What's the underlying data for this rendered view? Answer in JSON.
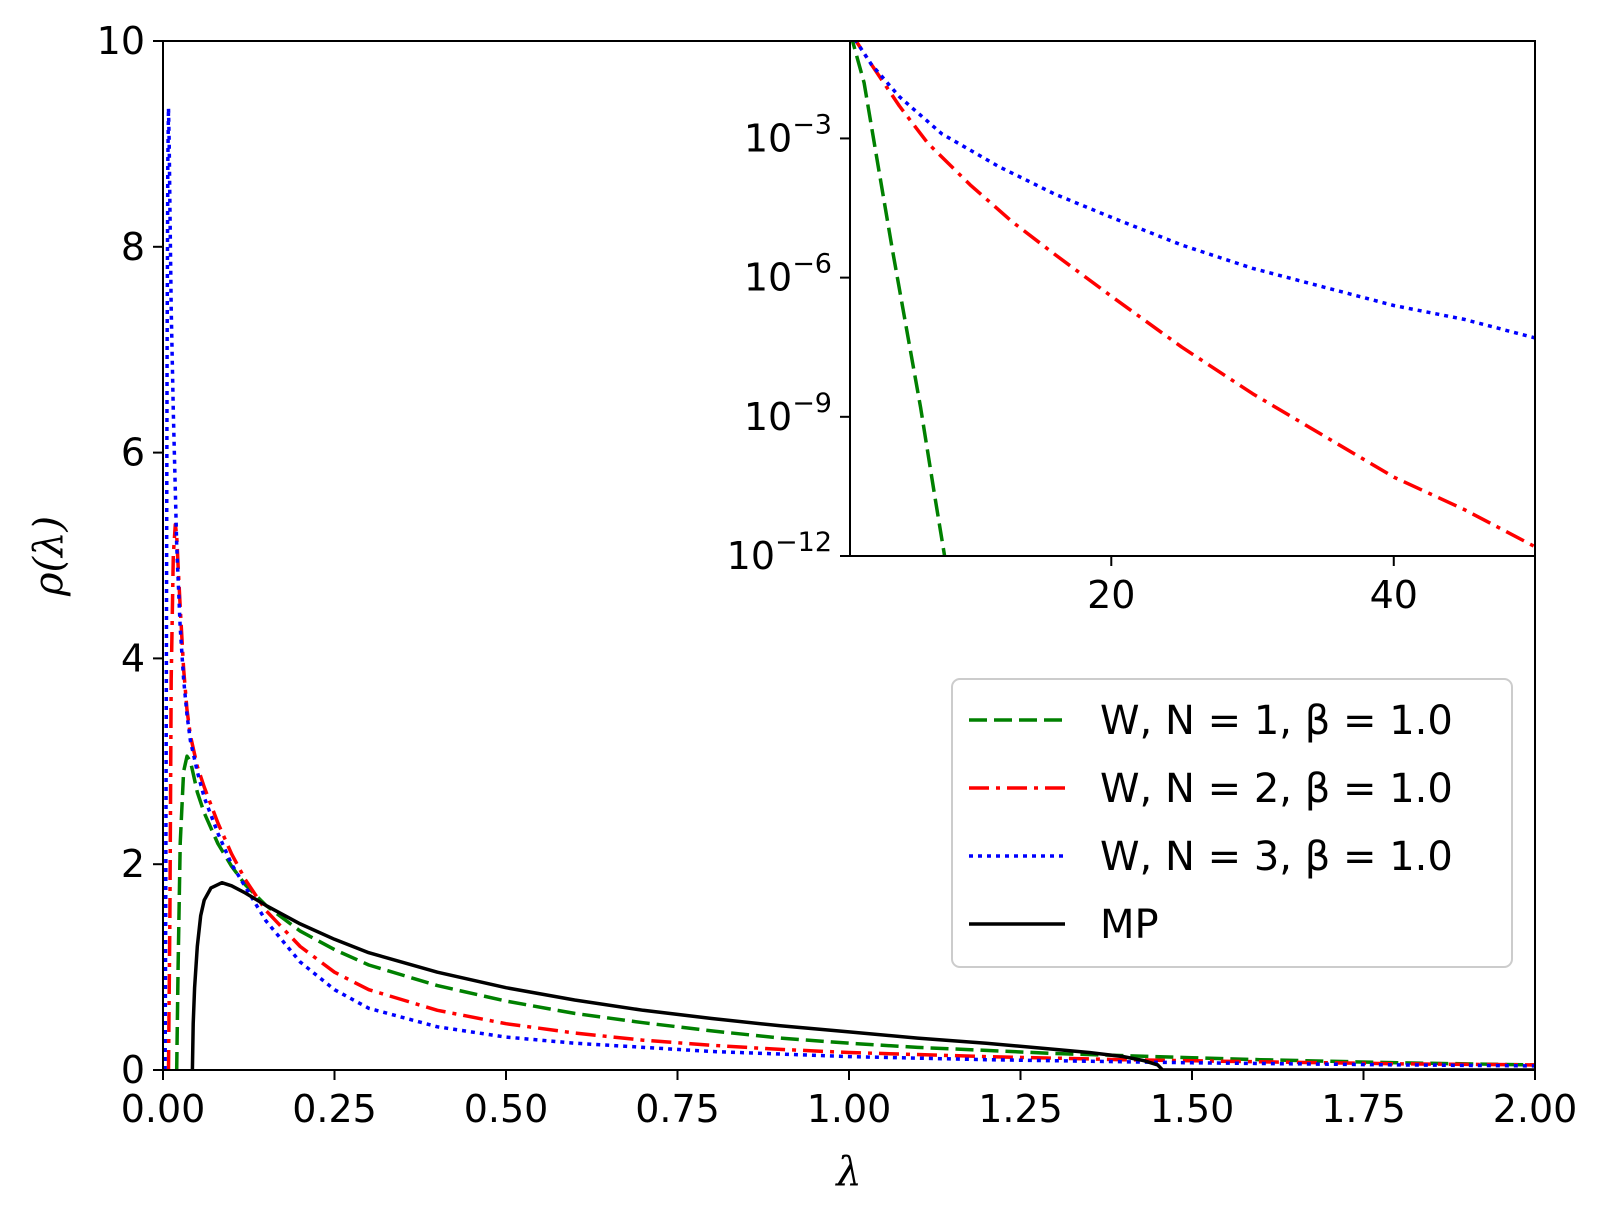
{
  "chart_data": [
    {
      "id": "main",
      "type": "line",
      "xlabel": "λ",
      "ylabel": "ρ(λ)",
      "xlim": [
        0,
        2
      ],
      "ylim": [
        0,
        10
      ],
      "xticks": [
        0,
        0.25,
        0.5,
        0.75,
        1.0,
        1.25,
        1.5,
        1.75,
        2.0
      ],
      "xtick_labels": [
        "0.00",
        "0.25",
        "0.50",
        "0.75",
        "1.00",
        "1.25",
        "1.50",
        "1.75",
        "2.00"
      ],
      "yticks": [
        0,
        2,
        4,
        6,
        8,
        10
      ],
      "ytick_labels": [
        "0",
        "2",
        "4",
        "6",
        "8",
        "10"
      ],
      "legend_position": "center-right",
      "series": [
        {
          "key": "n1",
          "name": "W, N = 1, β = 1.0",
          "color": "#008000",
          "style": "dashed",
          "x": [
            0.02,
            0.022,
            0.025,
            0.03,
            0.035,
            0.04,
            0.045,
            0.05,
            0.06,
            0.07,
            0.08,
            0.1,
            0.12,
            0.15,
            0.2,
            0.25,
            0.3,
            0.4,
            0.5,
            0.6,
            0.7,
            0.8,
            0.9,
            1.0,
            1.1,
            1.2,
            1.3,
            1.4,
            1.5,
            1.6,
            1.8,
            2.0
          ],
          "y": [
            0,
            1.0,
            2.2,
            2.9,
            3.05,
            3.0,
            2.85,
            2.7,
            2.5,
            2.35,
            2.2,
            1.98,
            1.8,
            1.6,
            1.35,
            1.17,
            1.02,
            0.82,
            0.67,
            0.55,
            0.46,
            0.38,
            0.31,
            0.26,
            0.22,
            0.19,
            0.16,
            0.14,
            0.12,
            0.1,
            0.07,
            0.05
          ]
        },
        {
          "key": "n2",
          "name": "W, N = 2, β = 1.0",
          "color": "#ff0000",
          "style": "dashdot",
          "x": [
            0.008,
            0.01,
            0.012,
            0.015,
            0.018,
            0.02,
            0.022,
            0.025,
            0.03,
            0.035,
            0.04,
            0.05,
            0.06,
            0.08,
            0.1,
            0.12,
            0.15,
            0.2,
            0.25,
            0.3,
            0.4,
            0.5,
            0.6,
            0.7,
            0.8,
            0.9,
            1.0,
            1.2,
            1.4,
            1.6,
            1.8,
            2.0
          ],
          "y": [
            0,
            1.5,
            3.8,
            5.0,
            5.3,
            5.2,
            4.9,
            4.5,
            3.9,
            3.5,
            3.25,
            2.95,
            2.75,
            2.4,
            2.1,
            1.85,
            1.55,
            1.2,
            0.95,
            0.78,
            0.58,
            0.45,
            0.36,
            0.29,
            0.24,
            0.2,
            0.17,
            0.13,
            0.1,
            0.08,
            0.06,
            0.05
          ]
        },
        {
          "key": "n3",
          "name": "W, N = 3, β = 1.0",
          "color": "#0000ff",
          "style": "dotted",
          "x": [
            0.003,
            0.004,
            0.005,
            0.006,
            0.007,
            0.008,
            0.009,
            0.01,
            0.012,
            0.015,
            0.02,
            0.025,
            0.03,
            0.035,
            0.04,
            0.05,
            0.06,
            0.08,
            0.1,
            0.12,
            0.15,
            0.2,
            0.25,
            0.3,
            0.4,
            0.5,
            0.6,
            0.8,
            1.0,
            1.2,
            1.5,
            1.8,
            2.0
          ],
          "y": [
            0,
            1.5,
            4.0,
            7.0,
            8.8,
            9.35,
            9.0,
            8.4,
            7.4,
            6.4,
            5.1,
            4.3,
            3.8,
            3.45,
            3.2,
            2.9,
            2.65,
            2.3,
            2.0,
            1.78,
            1.45,
            1.05,
            0.78,
            0.6,
            0.42,
            0.32,
            0.26,
            0.18,
            0.13,
            0.1,
            0.07,
            0.05,
            0.04
          ]
        },
        {
          "key": "mp",
          "name": "MP",
          "color": "#000000",
          "style": "solid",
          "x": [
            0.0429,
            0.044,
            0.046,
            0.05,
            0.055,
            0.06,
            0.07,
            0.0858,
            0.1,
            0.12,
            0.15,
            0.2,
            0.25,
            0.3,
            0.4,
            0.5,
            0.6,
            0.7,
            0.8,
            0.9,
            1.0,
            1.1,
            1.2,
            1.3,
            1.35,
            1.4,
            1.43,
            1.45,
            1.457,
            2.0
          ],
          "y": [
            0,
            0.45,
            0.8,
            1.2,
            1.5,
            1.65,
            1.77,
            1.82,
            1.79,
            1.72,
            1.6,
            1.42,
            1.27,
            1.14,
            0.95,
            0.8,
            0.68,
            0.58,
            0.5,
            0.43,
            0.37,
            0.31,
            0.26,
            0.2,
            0.17,
            0.13,
            0.09,
            0.05,
            0,
            0
          ]
        }
      ]
    },
    {
      "id": "inset",
      "type": "line",
      "scale_y": "log",
      "xlim": [
        1.5,
        50
      ],
      "ylim_exp": [
        -12,
        -0.9
      ],
      "xticks": [
        20,
        40
      ],
      "xtick_labels": [
        "20",
        "40"
      ],
      "yticks_exp": [
        -3,
        -6,
        -9,
        -12
      ],
      "ytick_labels": [
        {
          "base": "10",
          "exp": "−3"
        },
        {
          "base": "10",
          "exp": "−6"
        },
        {
          "base": "10",
          "exp": "−9"
        },
        {
          "base": "10",
          "exp": "−12"
        }
      ],
      "series": [
        {
          "key": "n1",
          "color": "#008000",
          "style": "dashed",
          "x": [
            1.5,
            2.5,
            3.5,
            4.5,
            5.5,
            6.5,
            7.5,
            8.2
          ],
          "log10y": [
            -0.7,
            -1.8,
            -3.6,
            -5.4,
            -7.1,
            -8.8,
            -10.7,
            -12.0
          ]
        },
        {
          "key": "n2",
          "color": "#ff0000",
          "style": "dashdot",
          "x": [
            1.5,
            3,
            5,
            7,
            10,
            13,
            16,
            20,
            25,
            30,
            35,
            40,
            45,
            50
          ],
          "log10y": [
            -0.7,
            -1.4,
            -2.3,
            -3.1,
            -4.0,
            -4.8,
            -5.5,
            -6.4,
            -7.5,
            -8.5,
            -9.4,
            -10.3,
            -11.0,
            -11.8
          ]
        },
        {
          "key": "n3",
          "color": "#0000ff",
          "style": "dotted",
          "x": [
            1.5,
            3,
            5,
            8,
            12,
            16,
            20,
            25,
            30,
            35,
            40,
            45,
            50
          ],
          "log10y": [
            -0.7,
            -1.4,
            -2.1,
            -2.9,
            -3.6,
            -4.2,
            -4.7,
            -5.3,
            -5.8,
            -6.2,
            -6.6,
            -6.9,
            -7.3
          ]
        }
      ]
    }
  ]
}
